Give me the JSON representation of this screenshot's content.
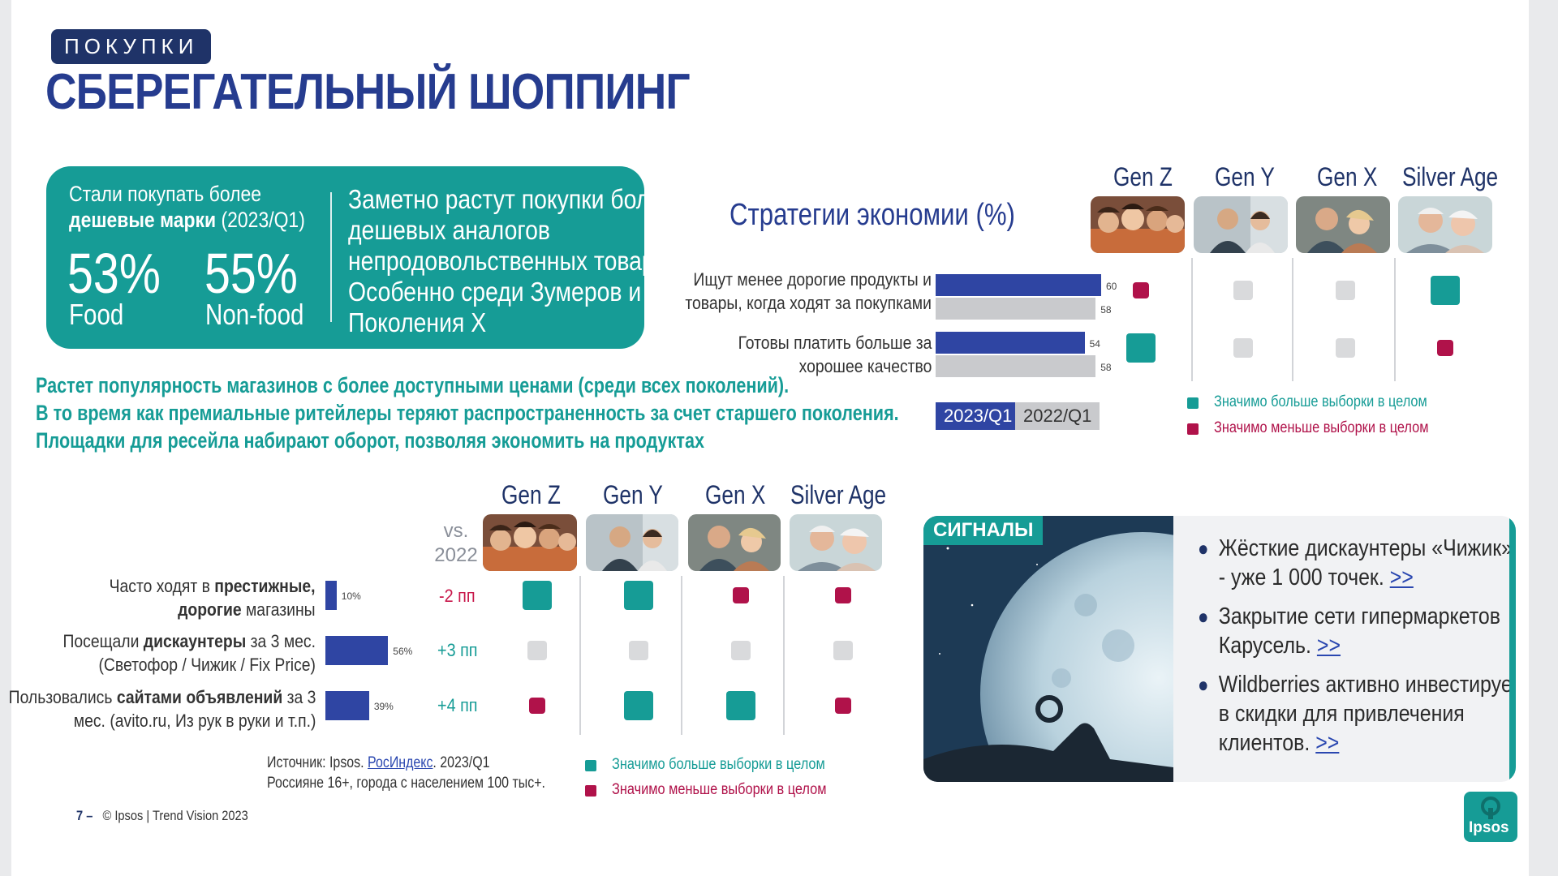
{
  "header": {
    "section": "ПОКУПКИ",
    "title": "СБЕРЕГАТЕЛЬНЫЙ ШОППИНГ"
  },
  "highlight": {
    "label_line1": "Стали покупать более",
    "label_bold": "дешевые марки",
    "label_suffix": " (2023/Q1)",
    "food_value": "53%",
    "food_label": "Food",
    "nonfood_value": "55%",
    "nonfood_label": "Non-food",
    "text_lines": [
      "Заметно растут покупки более",
      "дешевых аналогов",
      "непродовольственных товаров.",
      "Особенно среди Зумеров и",
      "Поколения Х"
    ]
  },
  "summary_lines": [
    "Растет популярность магазинов с более доступными ценами (среди всех поколений).",
    "В то время как премиальные ритейлеры теряют распространенность за счет старшего поколения.",
    "Площадки для ресейла набирают оборот, позволяя экономить на продуктах"
  ],
  "generations": [
    "Gen Z",
    "Gen Y",
    "Gen X",
    "Silver Age"
  ],
  "strategies": {
    "title": "Стратегии экономии (%)",
    "rows": [
      {
        "label_lines": [
          "Ищут менее дорогие продукты и",
          "товары, когда ходят за покупками"
        ],
        "v2023": 60,
        "v2022": 58,
        "signals": [
          "less",
          "neutral",
          "neutral",
          "more"
        ]
      },
      {
        "label_lines": [
          "Готовы платить больше за",
          "хорошее качество"
        ],
        "v2023": 54,
        "v2022": 58,
        "signals": [
          "more",
          "neutral",
          "neutral",
          "less"
        ]
      }
    ],
    "period_current": "2023/Q1",
    "period_previous": "2022/Q1",
    "legend_more": "Значимо больше выборки в целом",
    "legend_less": "Значимо меньше выборки в целом"
  },
  "stores": {
    "vs_label": [
      "vs.",
      "2022"
    ],
    "rows": [
      {
        "line1_a": "Часто ходят в ",
        "line1_b": "престижные,",
        "line2_a": "дорогие",
        "line2_b": " магазины",
        "value": 10,
        "value_label": "10%",
        "change": "-2 пп",
        "change_dir": "down",
        "signals": [
          "more",
          "more",
          "less",
          "less"
        ]
      },
      {
        "line1_a": "Посещали ",
        "line1_b": "дискаунтеры",
        "line1_c": " за 3 мес.",
        "line2_a": "(Светофор / Чижик / Fix Price)",
        "value": 56,
        "value_label": "56%",
        "change": "+3 пп",
        "change_dir": "up",
        "signals": [
          "neutral",
          "neutral",
          "neutral",
          "neutral"
        ]
      },
      {
        "line1_a": "Пользовались ",
        "line1_b": "сайтами объявлений",
        "line1_c": " за 3",
        "line2_a": "мес. (avito.ru, Из рук в руки и т.п.)",
        "value": 39,
        "value_label": "39%",
        "change": "+4 пп",
        "change_dir": "up",
        "signals": [
          "less",
          "more",
          "more",
          "less"
        ]
      }
    ],
    "source_prefix": "Источник: Ipsos. ",
    "source_link": "РосИндекс",
    "source_suffix": ". 2023/Q1",
    "source_line2": "Россияне 16+, города с населением 100 тыс+.",
    "legend_more": "Значимо больше выборки в целом",
    "legend_less": "Значимо меньше выборки в целом"
  },
  "signals": {
    "tag": "СИГНАЛЫ",
    "items": [
      {
        "lines": [
          "Жёсткие дискаунтеры  «Чижик»",
          "- уже 1 000 точек. "
        ],
        "link": ">>"
      },
      {
        "lines": [
          "Закрытие сети гипермаркетов",
          "Карусель. "
        ],
        "link": ">>"
      },
      {
        "lines": [
          "Wildberries активно инвестирует",
          "в скидки для привлечения",
          "клиентов. "
        ],
        "link": ">>"
      }
    ]
  },
  "footer": {
    "page": "7 –",
    "copyright": "© Ipsos | Trend Vision 2023"
  },
  "logo": "Ipsos",
  "colors": {
    "navy": "#1f3368",
    "title_blue": "#263c8f",
    "bar_blue": "#2f45a3",
    "bar_grey": "#c9cacd",
    "teal": "#169c96",
    "crimson": "#b0124a",
    "neutral": "#d9dadc"
  }
}
